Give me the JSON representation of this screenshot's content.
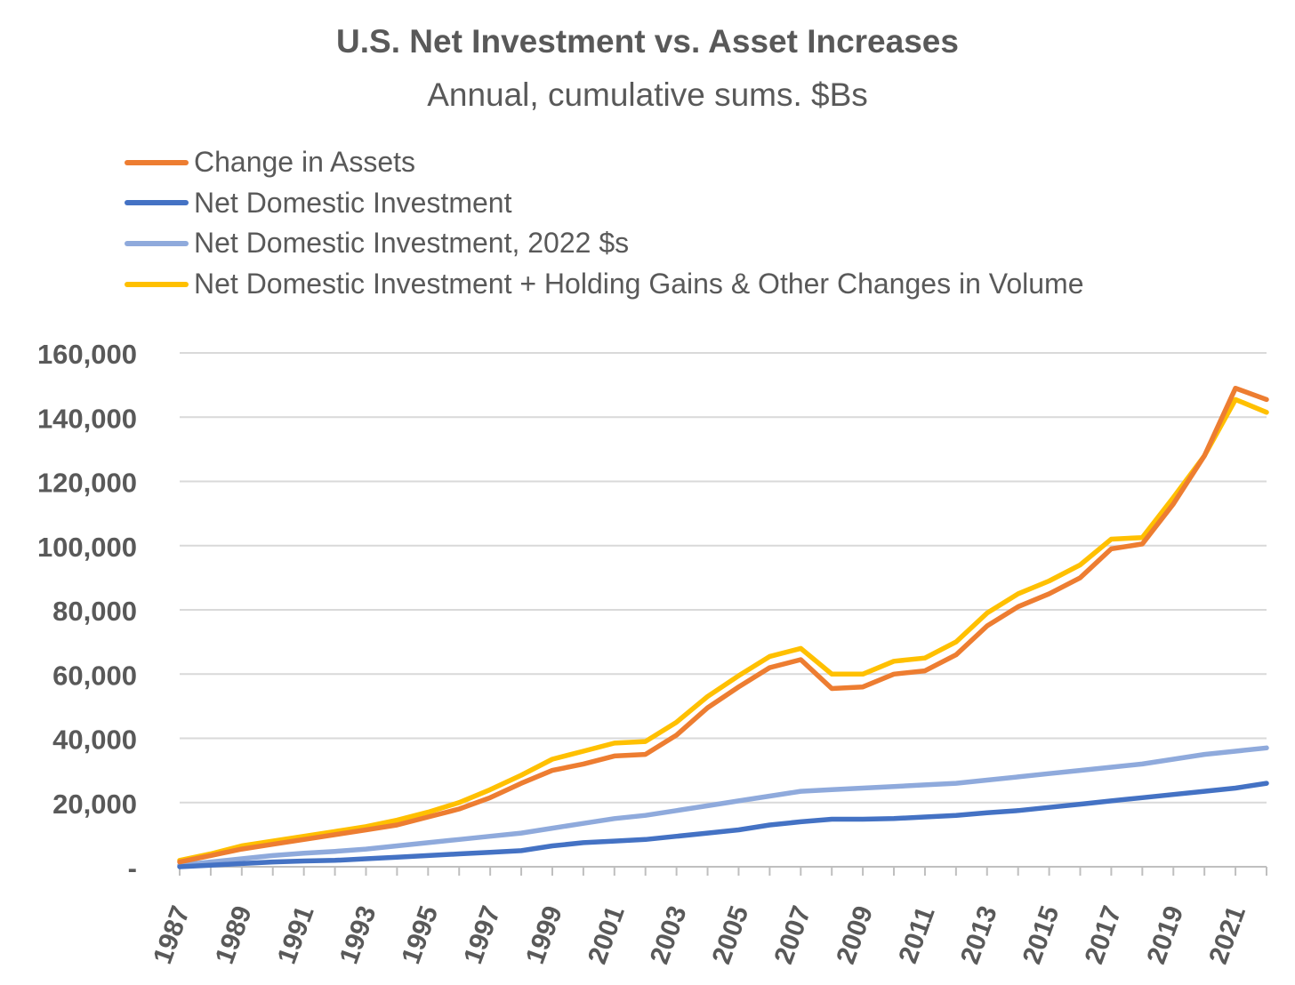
{
  "chart_data": {
    "type": "line",
    "title": "U.S. Net Investment vs. Asset Increases",
    "subtitle": "Annual, cumulative sums. $Bs",
    "xlabel": "",
    "ylabel": "",
    "ylim": [
      0,
      160000
    ],
    "yticks": [
      {
        "value": 0,
        "label": "-"
      },
      {
        "value": 20000,
        "label": "20,000"
      },
      {
        "value": 40000,
        "label": "40,000"
      },
      {
        "value": 60000,
        "label": "60,000"
      },
      {
        "value": 80000,
        "label": "80,000"
      },
      {
        "value": 100000,
        "label": "100,000"
      },
      {
        "value": 120000,
        "label": "120,000"
      },
      {
        "value": 140000,
        "label": "140,000"
      },
      {
        "value": 160000,
        "label": "160,000"
      }
    ],
    "x": [
      1987,
      1988,
      1989,
      1990,
      1991,
      1992,
      1993,
      1994,
      1995,
      1996,
      1997,
      1998,
      1999,
      2000,
      2001,
      2002,
      2003,
      2004,
      2005,
      2006,
      2007,
      2008,
      2009,
      2010,
      2011,
      2012,
      2013,
      2014,
      2015,
      2016,
      2017,
      2018,
      2019,
      2020,
      2021,
      2022
    ],
    "xtick_labels": [
      "1987",
      "1989",
      "1991",
      "1993",
      "1995",
      "1997",
      "1999",
      "2001",
      "2003",
      "2005",
      "2007",
      "2009",
      "2011",
      "2013",
      "2015",
      "2017",
      "2019",
      "2021"
    ],
    "grid": true,
    "legend_position": "top-left",
    "series": [
      {
        "name": "Change in Assets",
        "color": "#ED7D31",
        "values": [
          1500,
          3500,
          5500,
          7000,
          8500,
          10000,
          11500,
          13000,
          15500,
          18000,
          21500,
          26000,
          30000,
          32000,
          34500,
          35000,
          41000,
          49500,
          56000,
          62000,
          64500,
          55500,
          56000,
          60000,
          61000,
          66000,
          75000,
          81000,
          85000,
          90000,
          99000,
          100500,
          113000,
          128000,
          149000,
          145500
        ]
      },
      {
        "name": "Net Domestic Investment",
        "color": "#4472C4",
        "values": [
          0,
          500,
          1000,
          1500,
          1800,
          2000,
          2500,
          3000,
          3500,
          4000,
          4500,
          5000,
          6500,
          7500,
          8000,
          8500,
          9500,
          10500,
          11500,
          13000,
          14000,
          14800,
          14800,
          15000,
          15500,
          16000,
          16800,
          17500,
          18500,
          19500,
          20500,
          21500,
          22500,
          23500,
          24500,
          26000
        ]
      },
      {
        "name": "Net Domestic Investment, 2022 $s",
        "color": "#8FAADC",
        "values": [
          500,
          1500,
          2500,
          3500,
          4200,
          4800,
          5500,
          6500,
          7500,
          8500,
          9500,
          10500,
          12000,
          13500,
          15000,
          16000,
          17500,
          19000,
          20500,
          22000,
          23500,
          24000,
          24500,
          25000,
          25500,
          26000,
          27000,
          28000,
          29000,
          30000,
          31000,
          32000,
          33500,
          35000,
          36000,
          37000
        ]
      },
      {
        "name": "Net Domestic Investment + Holding Gains & Other Changes in Volume",
        "color": "#FFC000",
        "values": [
          2000,
          4000,
          6500,
          8000,
          9500,
          11000,
          12500,
          14500,
          17000,
          20000,
          24000,
          28500,
          33500,
          36000,
          38500,
          39000,
          45000,
          53000,
          59500,
          65500,
          68000,
          60000,
          60000,
          64000,
          65000,
          70000,
          79000,
          85000,
          89000,
          94000,
          102000,
          102500,
          115000,
          128000,
          145500,
          141500
        ]
      }
    ]
  }
}
